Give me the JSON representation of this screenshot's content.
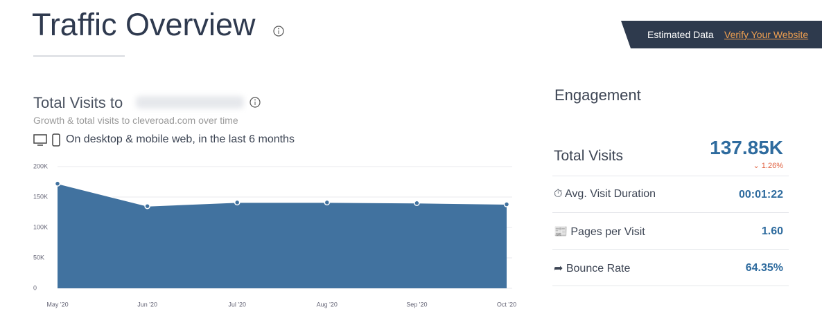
{
  "header": {
    "title": "Traffic Overview",
    "badge": "Estimated Data",
    "link": "Verify Your Website"
  },
  "visits": {
    "title": "Total Visits to",
    "subtitle": "Growth & total visits to cleveroad.com over time",
    "scope": "On desktop & mobile web, in the last 6 months"
  },
  "chart_data": {
    "type": "area",
    "categories": [
      "May '20",
      "Jun '20",
      "Jul '20",
      "Aug '20",
      "Sep '20",
      "Oct '20"
    ],
    "values": [
      172000,
      135000,
      141000,
      141000,
      140000,
      138000
    ],
    "color": "#41729f",
    "ylim": [
      0,
      200000
    ],
    "yticks": [
      0,
      {
        "value": 50000,
        "label": "50K"
      },
      {
        "value": 100000,
        "label": "100K"
      },
      {
        "value": 150000,
        "label": "150K"
      },
      {
        "value": 200000,
        "label": "200K"
      }
    ],
    "grid": true
  },
  "engagement": {
    "title": "Engagement",
    "total": {
      "label": "Total Visits",
      "value": "137.85K",
      "change": "1.26%"
    },
    "rows": [
      [
        "Avg. Visit Duration",
        "00:01:22"
      ],
      [
        "Pages per Visit",
        "1.60"
      ],
      [
        "Bounce Rate",
        "64.35%"
      ]
    ]
  }
}
